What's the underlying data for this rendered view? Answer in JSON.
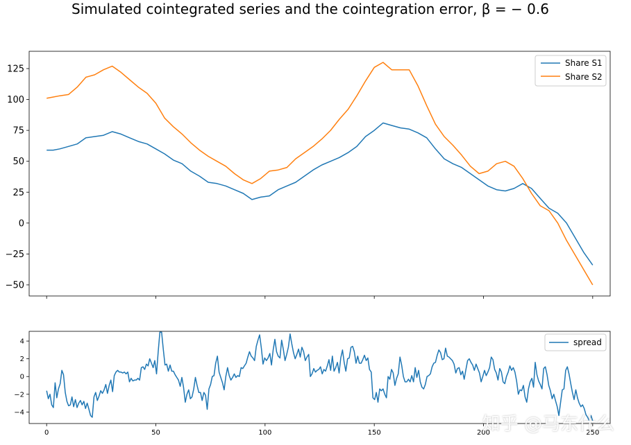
{
  "chart_data": [
    {
      "type": "line",
      "title": "Simulated cointegrated series and the cointegration error, β = − 0.6",
      "xlabel": "",
      "ylabel": "",
      "xlim": [
        -8,
        258
      ],
      "ylim": [
        -59,
        139
      ],
      "xticks": [
        0,
        50,
        100,
        150,
        200,
        250
      ],
      "yticks": [
        -50,
        -25,
        0,
        25,
        50,
        75,
        100,
        125
      ],
      "ytick_labels": [
        "−50",
        "−25",
        "0",
        "25",
        "50",
        "75",
        "100",
        "125"
      ],
      "legend_position": "top-right",
      "series": [
        {
          "name": "Share S1",
          "color": "#1f77b4",
          "x": [
            0,
            3,
            6,
            10,
            14,
            18,
            22,
            26,
            30,
            34,
            38,
            42,
            46,
            50,
            54,
            58,
            62,
            66,
            70,
            74,
            78,
            82,
            86,
            90,
            94,
            98,
            102,
            106,
            110,
            114,
            118,
            122,
            126,
            130,
            134,
            138,
            142,
            146,
            150,
            154,
            158,
            162,
            166,
            170,
            174,
            178,
            182,
            186,
            190,
            194,
            198,
            202,
            206,
            210,
            214,
            218,
            222,
            226,
            230,
            234,
            238,
            242,
            246,
            250
          ],
          "values": [
            59,
            59,
            60,
            62,
            64,
            69,
            70,
            71,
            74,
            72,
            69,
            66,
            64,
            60,
            56,
            51,
            48,
            42,
            38,
            33,
            32,
            30,
            27,
            24,
            19,
            21,
            22,
            27,
            30,
            33,
            38,
            43,
            47,
            50,
            53,
            57,
            62,
            70,
            75,
            81,
            79,
            77,
            76,
            73,
            69,
            60,
            52,
            48,
            45,
            40,
            35,
            30,
            27,
            26,
            28,
            32,
            28,
            20,
            12,
            8,
            0,
            -12,
            -24,
            -34
          ]
        },
        {
          "name": "Share S2",
          "color": "#ff7f0e",
          "x": [
            0,
            3,
            6,
            10,
            14,
            18,
            22,
            26,
            30,
            34,
            38,
            42,
            46,
            50,
            54,
            58,
            62,
            66,
            70,
            74,
            78,
            82,
            86,
            90,
            94,
            98,
            102,
            106,
            110,
            114,
            118,
            122,
            126,
            130,
            134,
            138,
            142,
            146,
            150,
            154,
            158,
            162,
            166,
            170,
            174,
            178,
            182,
            186,
            190,
            194,
            198,
            202,
            206,
            210,
            214,
            218,
            222,
            226,
            230,
            234,
            238,
            242,
            246,
            250
          ],
          "values": [
            101,
            102,
            103,
            104,
            110,
            118,
            120,
            124,
            127,
            122,
            116,
            110,
            105,
            97,
            85,
            78,
            72,
            65,
            59,
            54,
            50,
            46,
            40,
            35,
            32,
            36,
            42,
            43,
            45,
            52,
            57,
            62,
            68,
            75,
            84,
            92,
            103,
            115,
            126,
            130,
            124,
            124,
            124,
            111,
            95,
            80,
            70,
            63,
            55,
            46,
            40,
            42,
            48,
            50,
            46,
            36,
            24,
            14,
            10,
            0,
            -14,
            -26,
            -38,
            -50
          ]
        }
      ]
    },
    {
      "type": "line",
      "title": "",
      "xlabel": "",
      "ylabel": "",
      "xlim": [
        -8,
        258
      ],
      "ylim": [
        -5.3,
        5.1
      ],
      "xticks": [
        0,
        50,
        100,
        150,
        200,
        250
      ],
      "yticks": [
        -4,
        -2,
        0,
        2,
        4
      ],
      "ytick_labels": [
        "−4",
        "−2",
        "0",
        "2",
        "4"
      ],
      "legend_position": "top-right",
      "series": [
        {
          "name": "spread",
          "color": "#1f77b4",
          "values": [
            -1.6,
            -2.5,
            -2.0,
            -3.2,
            -3.5,
            -0.7,
            -2.4,
            -1.4,
            -0.8,
            0.7,
            0.2,
            -1.8,
            -2.8,
            -3.3,
            -3.2,
            -2.3,
            -3.4,
            -2.6,
            -3.5,
            -3.0,
            -2.7,
            -3.2,
            -2.8,
            -3.6,
            -3.0,
            -3.7,
            -4.4,
            -4.6,
            -2.3,
            -1.8,
            -2.7,
            -2.2,
            -1.6,
            -1.9,
            -1.5,
            -0.9,
            -1.9,
            -1.0,
            -0.4,
            -1.7,
            0.1,
            0.5,
            0.7,
            0.5,
            0.5,
            0.4,
            0.5,
            0.3,
            0.5,
            -0.6,
            -0.2,
            -0.5,
            -0.4,
            -0.4,
            -0.2,
            -0.4,
            1.0,
            1.1,
            0.8,
            1.4,
            1.2,
            2.0,
            1.5,
            1.0,
            1.8,
            0.3,
            2.8,
            5.0,
            5.0,
            3.1,
            1.3,
            1.4,
            0.6,
            1.3,
            0.6,
            0.6,
            0.2,
            -0.1,
            -0.4,
            -1.1,
            -0.1,
            -1.2,
            -2.9,
            -2.0,
            -1.5,
            -2.5,
            -2.3,
            -1.4,
            -0.1,
            -1.0,
            -1.8,
            -1.8,
            -2.7,
            -1.8,
            -2.1,
            -3.7,
            -1.4,
            -0.9,
            0.0,
            0.1,
            1.5,
            2.3,
            0.5,
            -0.1,
            -0.7,
            -1.5,
            0.0,
            1.0,
            0.1,
            -0.4,
            -0.1,
            0.3,
            -0.1,
            0.1,
            0.0,
            1.0,
            0.9,
            1.2,
            1.5,
            2.2,
            2.8,
            2.3,
            2.1,
            1.8,
            3.4,
            4.1,
            4.7,
            3.2,
            1.4,
            2.1,
            1.8,
            2.1,
            2.6,
            1.3,
            3.0,
            4.2,
            2.8,
            2.3,
            2.1,
            4.1,
            3.1,
            1.8,
            2.5,
            3.3,
            4.8,
            3.7,
            2.7,
            2.0,
            2.5,
            3.1,
            2.2,
            3.3,
            2.8,
            1.8,
            2.2,
            2.5,
            0.0,
            0.3,
            0.9,
            0.5,
            0.7,
            0.8,
            1.1,
            0.3,
            0.8,
            0.6,
            1.2,
            1.9,
            0.7,
            2.3,
            0.6,
            1.0,
            1.6,
            0.4,
            2.1,
            3.0,
            1.6,
            0.6,
            2.0,
            2.1,
            3.3,
            3.4,
            2.8,
            1.5,
            2.3,
            1.5,
            1.5,
            1.9,
            2.4,
            1.8,
            2.1,
            0.8,
            0.5,
            -2.4,
            -2.6,
            -1.8,
            -2.9,
            -1.4,
            -1.6,
            -1.4,
            -2.0,
            -2.4,
            0.0,
            -0.3,
            0.8,
            0.4,
            -1.0,
            -0.2,
            0.3,
            2.2,
            1.3,
            0.0,
            -0.6,
            -0.6,
            -0.3,
            -0.6,
            0.1,
            -0.6,
            1.0,
            -0.1,
            0.7,
            -0.6,
            -1.2,
            -1.4,
            -0.9,
            0.0,
            0.1,
            0.3,
            1.1,
            1.5,
            1.6,
            2.4,
            3.0,
            2.7,
            1.9,
            2.0,
            3.2,
            2.3,
            2.2,
            2.0,
            1.8,
            1.4,
            0.4,
            0.9,
            1.0,
            0.2,
            0.6,
            -0.3,
            0.8,
            1.8,
            2.0,
            1.6,
            1.3,
            0.7,
            1.4,
            0.9,
            0.4,
            -0.6,
            0.0,
            0.7,
            0.1,
            0.5,
            1.0,
            2.2,
            1.9,
            0.8,
            0.4,
            -0.4,
            0.9,
            0.5,
            -0.6,
            -0.8,
            0.0,
            0.5,
            1.2,
            0.7,
            1.0,
            0.5,
            -0.5,
            -2.0,
            -1.5,
            -1.6,
            -1.0,
            -2.3,
            -2.9,
            -1.4,
            -0.6,
            -0.2,
            -1.2,
            1.6,
            0.2,
            -0.5,
            -0.9,
            -1.4,
            0.9,
            1.1,
            0.2,
            -1.0,
            -1.6,
            -2.5,
            -2.0,
            -2.7,
            -3.4,
            -4.4,
            -2.9,
            -1.5,
            -1.4,
            0.7,
            1.1,
            0.3,
            -0.8,
            -1.8,
            -2.6,
            -1.5,
            -2.4,
            -3.0,
            -3.4,
            -3.2,
            -3.6,
            -4.3,
            -4.6,
            -5.0,
            -4.4,
            -5.0
          ]
        }
      ]
    }
  ],
  "watermark": "知乎 @马东什么"
}
